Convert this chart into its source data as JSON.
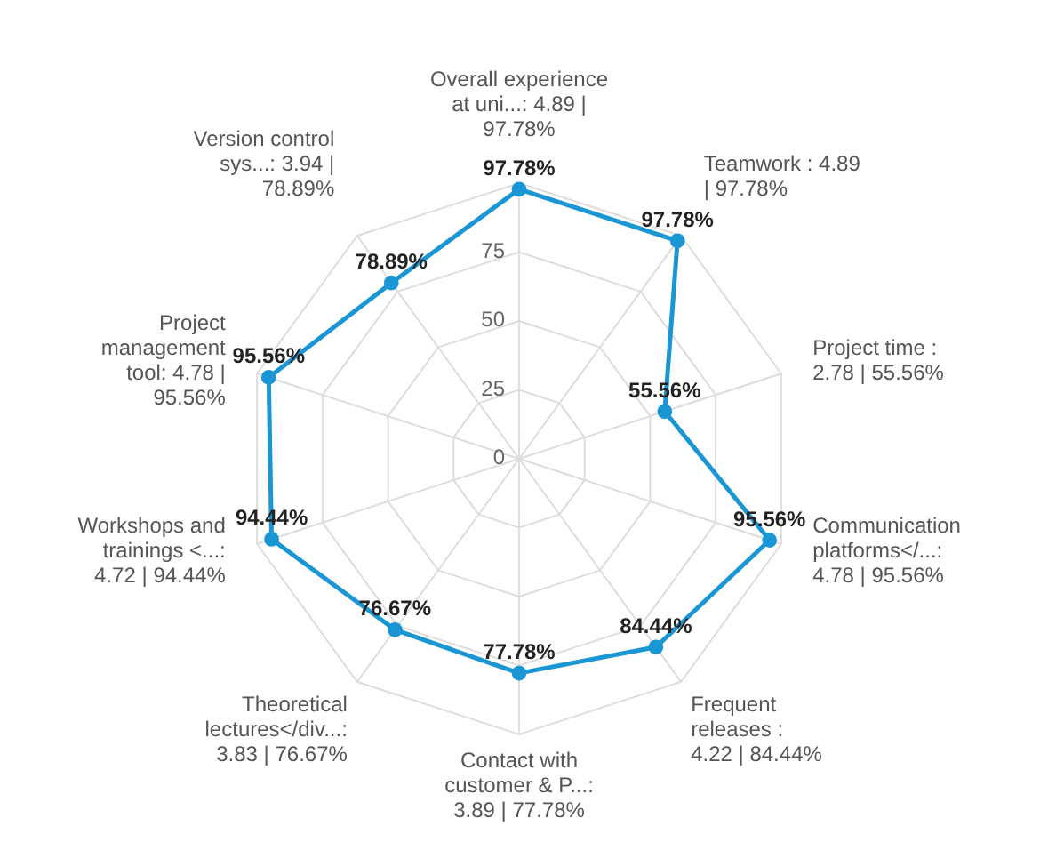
{
  "chart_data": {
    "type": "radar",
    "categories": [
      "Overall experience at uni...: 4.89 | 97.78%",
      "Teamwork : 4.89 | 97.78%",
      "Project time : 2.78 | 55.56%",
      "Communication platforms</...: 4.78 | 95.56%",
      "Frequent releases  : 4.22 | 84.44%",
      "Contact with customer & P...: 3.89 | 77.78%",
      "Theoretical lectures</div...: 3.83 | 76.67%",
      "Workshops and trainings <...: 4.72 | 94.44%",
      "Project management tool: 4.78 | 95.56%",
      "Version control sys...: 3.94 | 78.89%"
    ],
    "series": [
      {
        "color": "#1a96d4",
        "values": [
          97.78,
          97.78,
          55.56,
          95.56,
          84.44,
          77.78,
          76.67,
          94.44,
          95.56,
          78.89
        ],
        "value_labels": [
          "97.78%",
          "97.78%",
          "55.56%",
          "95.56%",
          "84.44%",
          "77.78%",
          "76.67%",
          "94.44%",
          "95.56%",
          "78.89%"
        ]
      }
    ],
    "ylim": [
      0,
      100
    ],
    "yticks": [
      0,
      25,
      50,
      75
    ],
    "grid": true,
    "marker": "circle"
  }
}
